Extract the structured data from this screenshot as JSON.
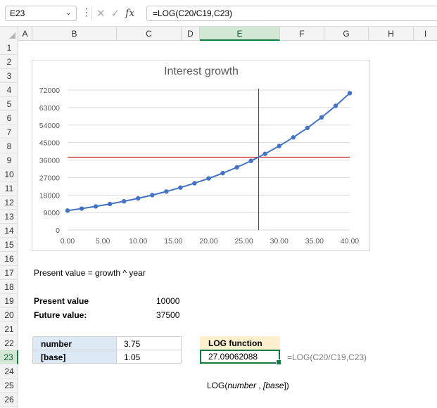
{
  "formula_bar": {
    "name_box": "E23",
    "formula": "=LOG(C20/C19,C23)"
  },
  "columns": [
    "A",
    "B",
    "C",
    "D",
    "E",
    "F",
    "G",
    "H",
    "I"
  ],
  "rows": [
    "1",
    "2",
    "3",
    "4",
    "5",
    "6",
    "7",
    "8",
    "9",
    "10",
    "11",
    "12",
    "13",
    "14",
    "15",
    "16",
    "17",
    "18",
    "19",
    "20",
    "21",
    "22",
    "23",
    "24",
    "25",
    "26"
  ],
  "cells": {
    "b17": "Present value = growth ^ year",
    "b19": "Present value",
    "c19": "10000",
    "b20": "Future value:",
    "c20": "37500",
    "b22": "number",
    "c22": "3.75",
    "b23": "[base]",
    "c23": "1.05",
    "e22": "LOG function",
    "e23": "27.09062088",
    "f23": "=LOG(C20/C19,C23)",
    "e25_func": "LOG(",
    "e25_arg1": "number",
    "e25_sep": " , ",
    "e25_arg2": "[base",
    "e25_close": "])"
  },
  "colors": {
    "series": "#4472c4",
    "crosshair": "#c00000",
    "selection": "#107c41"
  },
  "chart_data": {
    "type": "line",
    "title": "Interest growth",
    "xlabel": "",
    "ylabel": "",
    "xlim": [
      0,
      40
    ],
    "ylim": [
      0,
      72000
    ],
    "x_ticks": [
      "0.00",
      "5.00",
      "10.00",
      "15.00",
      "20.00",
      "25.00",
      "30.00",
      "35.00",
      "40.00"
    ],
    "y_ticks": [
      "0",
      "9000",
      "18000",
      "27000",
      "36000",
      "45000",
      "54000",
      "63000",
      "72000"
    ],
    "grid": "horizontal",
    "legend": "none",
    "series": [
      {
        "x": [
          0,
          2,
          4,
          6,
          8,
          10,
          12,
          14,
          16,
          18,
          20,
          22,
          24,
          26,
          28,
          30,
          32,
          34,
          36,
          38,
          40
        ],
        "values": [
          10000,
          11025,
          12155,
          13401,
          14775,
          16289,
          17959,
          19799,
          21829,
          24066,
          26533,
          29253,
          32251,
          35557,
          39201,
          43219,
          47649,
          52533,
          57918,
          63855,
          70400
        ]
      }
    ],
    "crosshair": {
      "x": 27.09062088,
      "y": 37500
    }
  }
}
